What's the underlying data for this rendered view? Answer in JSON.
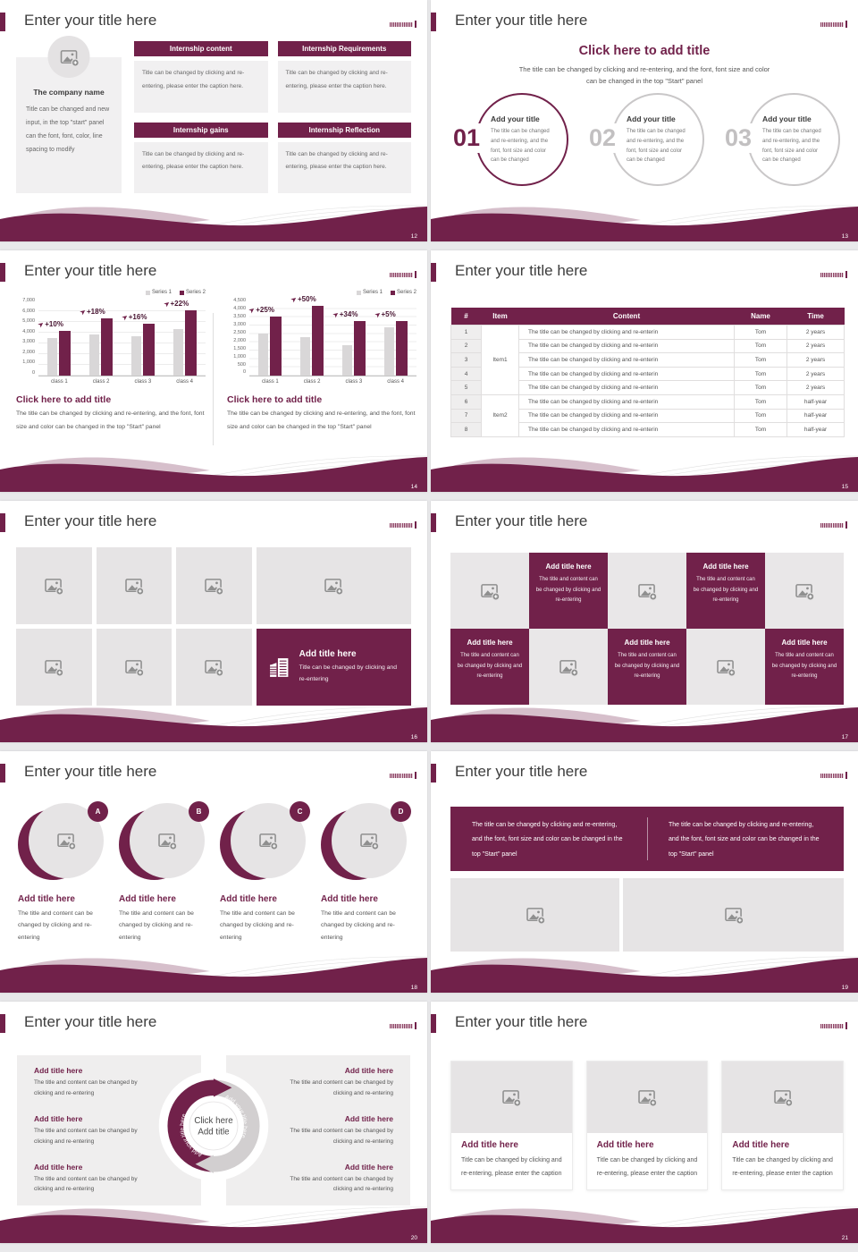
{
  "theme": {
    "maroon": "#71214a",
    "light_wave": "#d6bfcb",
    "tile_gray": "#e6e4e5",
    "page_bg": "#e9e9eb",
    "body_text": "#555555",
    "title_text": "#3d3d3d"
  },
  "common": {
    "slide_title": "Enter your title here"
  },
  "chart_data": [
    {
      "type": "bar",
      "title": "Click here to add title",
      "caption": "The title can be changed by clicking and re-entering, and the font, font size and color can be changed in the top \"Start\" panel",
      "categories": [
        "class 1",
        "class 2",
        "class 3",
        "class 4"
      ],
      "series": [
        {
          "name": "Series 1",
          "values": [
            3500,
            3800,
            3700,
            4300
          ]
        },
        {
          "name": "Series 2",
          "values": [
            4200,
            5300,
            4800,
            6100
          ]
        }
      ],
      "annotations": [
        "+10%",
        "+18%",
        "+16%",
        "+22%"
      ],
      "ylim": [
        0,
        7000
      ],
      "ytick": 1000,
      "grid": true,
      "legend_position": "top-right"
    },
    {
      "type": "bar",
      "title": "Click here to add title",
      "caption": "The title can be changed by clicking and re-entering, and the font, font size and color can be changed in the top \"Start\" panel",
      "categories": [
        "class 1",
        "class 2",
        "class 3",
        "class 4"
      ],
      "series": [
        {
          "name": "Series 1",
          "values": [
            2500,
            2300,
            1800,
            2900
          ]
        },
        {
          "name": "Series 2",
          "values": [
            3550,
            4200,
            3250,
            3250
          ]
        }
      ],
      "annotations": [
        "+25%",
        "+50%",
        "+34%",
        "+5%"
      ],
      "ylim": [
        0,
        4500
      ],
      "ytick": 500,
      "grid": true,
      "legend_position": "top-right"
    }
  ],
  "slides": {
    "s12": {
      "page": "12",
      "company": {
        "title": "The company name",
        "body": "Title can be changed and new input, in the top \"start\" panel can the font, font, color, line spacing to modify"
      },
      "boxes": [
        {
          "title": "Internship content",
          "body": "Title can be changed by clicking and re-entering, please enter the caption here."
        },
        {
          "title": "Internship Requirements",
          "body": "Title can be changed by clicking and re-entering, please enter the caption here."
        },
        {
          "title": "Internship gains",
          "body": "Title can be changed by clicking and re-entering, please enter the caption here."
        },
        {
          "title": "Internship Reflection",
          "body": "Title can be changed by clicking and re-entering, please enter the caption here."
        }
      ]
    },
    "s13": {
      "page": "13",
      "heading": "Click here to add title",
      "subheading": "The title can be changed by clicking and re-entering, and the font, font size and color can be changed in the top \"Start\" panel",
      "steps": [
        {
          "num": "01",
          "title": "Add your title",
          "body": "The title can be changed and re-entering, and the font, font size and color can be changed"
        },
        {
          "num": "02",
          "title": "Add your title",
          "body": "The title can be changed and re-entering, and the font, font size and color can be changed"
        },
        {
          "num": "03",
          "title": "Add your title",
          "body": "The title can be changed and re-entering, and the font, font size and color can be changed"
        }
      ]
    },
    "s14": {
      "page": "14"
    },
    "s15": {
      "page": "15",
      "table": {
        "headers": [
          "#",
          "Item",
          "Content",
          "Name",
          "Time"
        ],
        "item_groups": [
          {
            "label": "Item1",
            "rows": 5
          },
          {
            "label": "Item2",
            "rows": 3
          }
        ],
        "rows": [
          {
            "num": "1",
            "content": "The title can be changed by clicking and re-enterin",
            "name": "Tom",
            "time": "2 years"
          },
          {
            "num": "2",
            "content": "The title can be changed by clicking and re-enterin",
            "name": "Tom",
            "time": "2 years"
          },
          {
            "num": "3",
            "content": "The title can be changed by clicking and re-enterin",
            "name": "Tom",
            "time": "2 years"
          },
          {
            "num": "4",
            "content": "The title can be changed by clicking and re-enterin",
            "name": "Tom",
            "time": "2 years"
          },
          {
            "num": "5",
            "content": "The title can be changed by clicking and re-enterin",
            "name": "Tom",
            "time": "2 years"
          },
          {
            "num": "6",
            "content": "The title can be changed by clicking and re-enterin",
            "name": "Tom",
            "time": "half-year"
          },
          {
            "num": "7",
            "content": "The title can be changed by clicking and re-enterin",
            "name": "Tom",
            "time": "half-year"
          },
          {
            "num": "8",
            "content": "The title can be changed by clicking and re-enterin",
            "name": "Tom",
            "time": "half-year"
          }
        ]
      }
    },
    "s16": {
      "page": "16",
      "promo": {
        "title": "Add title here",
        "body": "Title can be changed by clicking and re-entering"
      }
    },
    "s17": {
      "page": "17",
      "tile": {
        "title": "Add title here",
        "body": "The title and content can be changed by clicking and re-entering"
      }
    },
    "s18": {
      "page": "18",
      "items": [
        {
          "letter": "A",
          "title": "Add title here",
          "body": "The title and content can be changed by clicking and re-entering"
        },
        {
          "letter": "B",
          "title": "Add title here",
          "body": "The title and content can be changed by clicking and re-entering"
        },
        {
          "letter": "C",
          "title": "Add title here",
          "body": "The title and content can be changed by clicking and re-entering"
        },
        {
          "letter": "D",
          "title": "Add title here",
          "body": "The title and content can be changed by clicking and re-entering"
        }
      ]
    },
    "s19": {
      "page": "19",
      "left_text": "The title can be changed by clicking and re-entering, and the font, font size and color can be changed in the top \"Start\" panel",
      "right_text": "The title can be changed by clicking and re-entering, and the font, font size and color can be changed in the top \"Start\" panel"
    },
    "s20": {
      "page": "20",
      "center_line1": "Click here",
      "center_line2": "Add title",
      "arc_label_left": "Add your title here",
      "arc_label_right": "Add your title here",
      "item": {
        "title": "Add title here",
        "body": "The title and content can be changed by clicking and re-entering"
      }
    },
    "s21": {
      "page": "21",
      "cards": [
        {
          "title": "Add title here",
          "body": "Title can be changed by clicking and re-entering, please enter the caption"
        },
        {
          "title": "Add title here",
          "body": "Title can be changed by clicking and re-entering, please enter the caption"
        },
        {
          "title": "Add title here",
          "body": "Title can be changed by clicking and re-entering, please enter the caption"
        }
      ]
    }
  }
}
